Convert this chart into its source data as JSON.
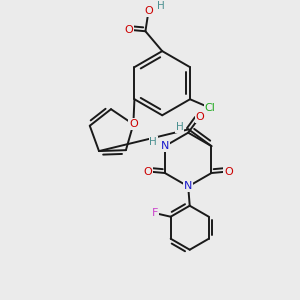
{
  "background_color": "#ebebeb",
  "bond_color": "#1a1a1a",
  "bond_width": 1.4,
  "label_colors": {
    "O": "#cc0000",
    "N": "#1a1acc",
    "Cl": "#22aa22",
    "F": "#cc44cc",
    "H": "#4a9090",
    "C": "#1a1a1a"
  },
  "figsize": [
    3.0,
    3.0
  ],
  "dpi": 100
}
